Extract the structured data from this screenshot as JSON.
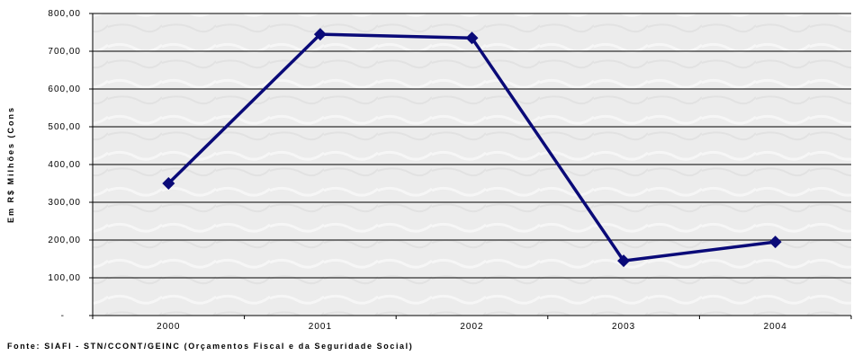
{
  "chart_data": {
    "type": "line",
    "categories": [
      "2000",
      "2001",
      "2002",
      "2003",
      "2004"
    ],
    "series": [
      {
        "values": [
          350,
          745,
          735,
          145,
          195
        ],
        "color": "#0a0a78",
        "marker": "diamond"
      }
    ],
    "ylim": [
      0,
      800
    ],
    "yticks": [
      {
        "value": 0,
        "label": "-"
      },
      {
        "value": 100,
        "label": "100,00"
      },
      {
        "value": 200,
        "label": "200,00"
      },
      {
        "value": 300,
        "label": "300,00"
      },
      {
        "value": 400,
        "label": "400,00"
      },
      {
        "value": 500,
        "label": "500,00"
      },
      {
        "value": 600,
        "label": "600,00"
      },
      {
        "value": 700,
        "label": "700,00"
      },
      {
        "value": 800,
        "label": "800,00"
      }
    ],
    "ylabel": "Em R$ Milhões (Cons",
    "xlabel": "",
    "grid": true,
    "plot_background": "#ececec",
    "source_note": "Fonte: SIAFI - STN/CCONT/GEINC (Orçamentos Fiscal e da Seguridade Social)"
  }
}
